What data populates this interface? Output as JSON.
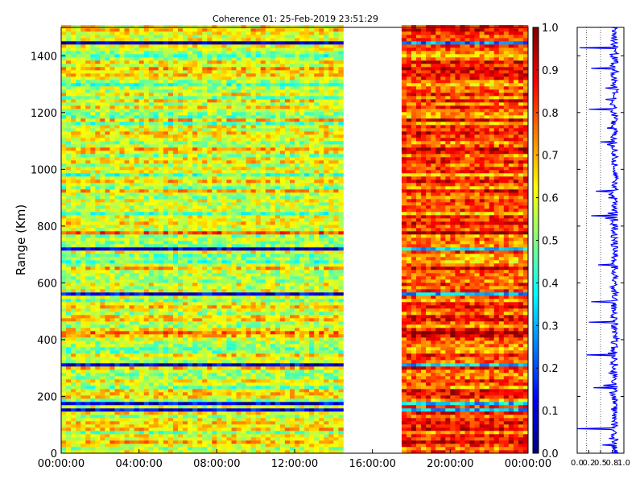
{
  "chart_data": [
    {
      "type": "heatmap",
      "title": "Coherence 01: 25-Feb-2019 23:51:29",
      "ylabel": "Range (Km)",
      "xlabel": "",
      "x_ticks": [
        "00:00:00",
        "04:00:00",
        "08:00:00",
        "12:00:00",
        "16:00:00",
        "20:00:00",
        "00:00:00"
      ],
      "x_range_hours": [
        0,
        24
      ],
      "data_segments_hours": [
        [
          0,
          14.5
        ],
        [
          17.5,
          24
        ]
      ],
      "y_ticks": [
        "0",
        "200",
        "400",
        "600",
        "800",
        "1000",
        "1200",
        "1400"
      ],
      "ylim": [
        0,
        1500
      ],
      "colorbar": {
        "colormap": "jet",
        "range": [
          0,
          1
        ],
        "ticks": [
          "0.0",
          "0.1",
          "0.2",
          "0.3",
          "0.4",
          "0.5",
          "0.6",
          "0.7",
          "0.8",
          "0.9",
          "1.0"
        ]
      },
      "features": [
        {
          "range_km": 1450,
          "level": 0.05
        },
        {
          "range_km": 560,
          "level": 0.1
        },
        {
          "range_km": 175,
          "level": 0.1
        },
        {
          "range_km": 150,
          "level": 0.1
        },
        {
          "range_km": 420,
          "level": 0.75
        },
        {
          "range_km": 780,
          "level": 0.8
        },
        {
          "range_km": 310,
          "level": 0.1
        },
        {
          "range_km": 720,
          "level": 0.1
        }
      ]
    },
    {
      "type": "line",
      "title": "",
      "x_ticks": [
        "0.0",
        "0.2",
        "0.5",
        "0.8",
        "1.0"
      ],
      "xlim": [
        0,
        1
      ],
      "ylim": [
        0,
        1500
      ],
      "series": [
        {
          "color": "#0000ff"
        }
      ]
    }
  ]
}
